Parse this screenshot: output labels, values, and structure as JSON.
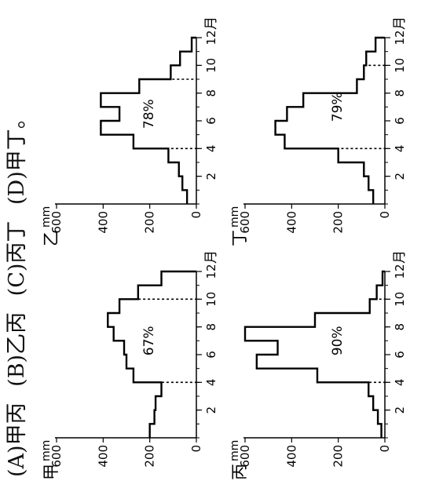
{
  "question": {
    "options": [
      {
        "key": "(A)",
        "text": "甲丙"
      },
      {
        "key": "(B)",
        "text": "乙丙"
      },
      {
        "key": "(C)",
        "text": "丙丁"
      },
      {
        "key": "(D)",
        "text": "甲丁。"
      }
    ]
  },
  "chart_data": [
    {
      "type": "bar",
      "station": "甲",
      "unit": "mm",
      "x_unit": "月",
      "categories": [
        1,
        2,
        3,
        4,
        5,
        6,
        7,
        8,
        9,
        10,
        11,
        12
      ],
      "values": [
        200,
        180,
        175,
        150,
        270,
        300,
        310,
        355,
        380,
        330,
        250,
        150
      ],
      "annotation": "67%",
      "highlight_range": [
        4,
        10
      ],
      "ylim": [
        0,
        600
      ],
      "yticks": [
        0,
        200,
        400,
        600
      ],
      "xticks": [
        2,
        4,
        6,
        8,
        10,
        12
      ]
    },
    {
      "type": "bar",
      "station": "乙",
      "unit": "mm",
      "x_unit": "月",
      "categories": [
        1,
        2,
        3,
        4,
        5,
        6,
        7,
        8,
        9,
        10,
        11,
        12
      ],
      "values": [
        40,
        60,
        75,
        120,
        270,
        410,
        330,
        410,
        245,
        110,
        70,
        20
      ],
      "annotation": "78%",
      "highlight_range": [
        4,
        9
      ],
      "ylim": [
        0,
        600
      ],
      "yticks": [
        0,
        200,
        400,
        600
      ],
      "xticks": [
        2,
        4,
        6,
        8,
        10,
        12
      ]
    },
    {
      "type": "bar",
      "station": "丙",
      "unit": "mm",
      "x_unit": "月",
      "categories": [
        1,
        2,
        3,
        4,
        5,
        6,
        7,
        8,
        9,
        10,
        11,
        12
      ],
      "values": [
        15,
        30,
        50,
        70,
        290,
        550,
        460,
        600,
        300,
        65,
        35,
        10
      ],
      "annotation": "90%",
      "highlight_range": [
        4,
        10
      ],
      "ylim": [
        0,
        600
      ],
      "yticks": [
        0,
        200,
        400,
        600
      ],
      "xticks": [
        2,
        4,
        6,
        8,
        10,
        12
      ]
    },
    {
      "type": "bar",
      "station": "丁",
      "unit": "mm",
      "x_unit": "月",
      "categories": [
        1,
        2,
        3,
        4,
        5,
        6,
        7,
        8,
        9,
        10,
        11,
        12
      ],
      "values": [
        50,
        70,
        90,
        200,
        430,
        470,
        420,
        350,
        120,
        90,
        80,
        40
      ],
      "annotation": "79%",
      "highlight_range": [
        4,
        10
      ],
      "ylim": [
        0,
        600
      ],
      "yticks": [
        0,
        200,
        400,
        600
      ],
      "xticks": [
        2,
        4,
        6,
        8,
        10,
        12
      ]
    }
  ]
}
